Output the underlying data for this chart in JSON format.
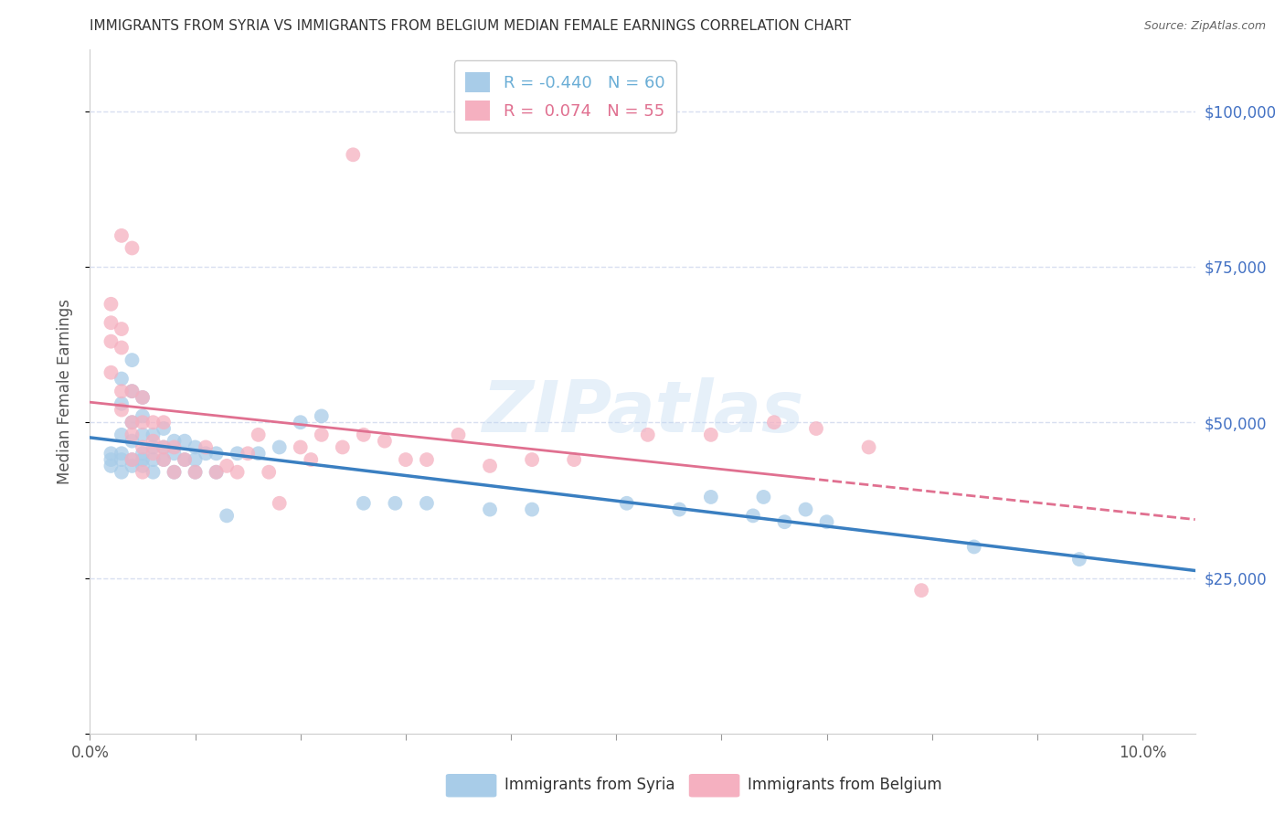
{
  "title": "IMMIGRANTS FROM SYRIA VS IMMIGRANTS FROM BELGIUM MEDIAN FEMALE EARNINGS CORRELATION CHART",
  "source": "Source: ZipAtlas.com",
  "ylabel": "Median Female Earnings",
  "watermark": "ZIPatlas",
  "xlim": [
    0.0,
    0.105
  ],
  "ylim": [
    0,
    110000
  ],
  "yticks": [
    0,
    25000,
    50000,
    75000,
    100000
  ],
  "ytick_labels": [
    "",
    "$25,000",
    "$50,000",
    "$75,000",
    "$100,000"
  ],
  "xticks": [
    0.0,
    0.01,
    0.02,
    0.03,
    0.04,
    0.05,
    0.06,
    0.07,
    0.08,
    0.09,
    0.1
  ],
  "xtick_labels_show": [
    "0.0%",
    "",
    "",
    "",
    "",
    "",
    "",
    "",
    "",
    "",
    "10.0%"
  ],
  "legend_entries": [
    {
      "label": "R = -0.440   N = 60",
      "color": "#6baed6"
    },
    {
      "label": "R =  0.074   N = 55",
      "color": "#e07090"
    }
  ],
  "syria_color": "#a8cce8",
  "belgium_color": "#f5b0c0",
  "syria_line_color": "#3a7fc1",
  "belgium_line_color": "#e07090",
  "grid_color": "#d8dff0",
  "title_color": "#333333",
  "ytick_color": "#4472c4",
  "background_color": "#ffffff",
  "syria_x": [
    0.002,
    0.002,
    0.002,
    0.003,
    0.003,
    0.003,
    0.003,
    0.003,
    0.003,
    0.004,
    0.004,
    0.004,
    0.004,
    0.004,
    0.004,
    0.005,
    0.005,
    0.005,
    0.005,
    0.005,
    0.005,
    0.006,
    0.006,
    0.006,
    0.006,
    0.007,
    0.007,
    0.007,
    0.008,
    0.008,
    0.008,
    0.009,
    0.009,
    0.01,
    0.01,
    0.01,
    0.011,
    0.012,
    0.012,
    0.013,
    0.014,
    0.016,
    0.018,
    0.02,
    0.022,
    0.026,
    0.029,
    0.032,
    0.038,
    0.042,
    0.051,
    0.056,
    0.059,
    0.063,
    0.064,
    0.066,
    0.068,
    0.07,
    0.084,
    0.094
  ],
  "syria_y": [
    45000,
    44000,
    43000,
    57000,
    53000,
    48000,
    45000,
    44000,
    42000,
    60000,
    55000,
    50000,
    47000,
    44000,
    43000,
    54000,
    51000,
    48000,
    45000,
    44000,
    43000,
    48000,
    46000,
    44000,
    42000,
    49000,
    46000,
    44000,
    47000,
    45000,
    42000,
    47000,
    44000,
    46000,
    44000,
    42000,
    45000,
    45000,
    42000,
    35000,
    45000,
    45000,
    46000,
    50000,
    51000,
    37000,
    37000,
    37000,
    36000,
    36000,
    37000,
    36000,
    38000,
    35000,
    38000,
    34000,
    36000,
    34000,
    30000,
    28000
  ],
  "belgium_x": [
    0.002,
    0.002,
    0.002,
    0.002,
    0.003,
    0.003,
    0.003,
    0.003,
    0.003,
    0.004,
    0.004,
    0.004,
    0.004,
    0.004,
    0.005,
    0.005,
    0.005,
    0.005,
    0.006,
    0.006,
    0.006,
    0.007,
    0.007,
    0.007,
    0.008,
    0.008,
    0.009,
    0.01,
    0.011,
    0.012,
    0.013,
    0.014,
    0.015,
    0.016,
    0.017,
    0.018,
    0.02,
    0.021,
    0.022,
    0.024,
    0.026,
    0.028,
    0.03,
    0.032,
    0.035,
    0.038,
    0.042,
    0.046,
    0.053,
    0.059,
    0.065,
    0.069,
    0.074,
    0.079,
    0.025
  ],
  "belgium_y": [
    69000,
    66000,
    63000,
    58000,
    80000,
    65000,
    62000,
    55000,
    52000,
    78000,
    55000,
    50000,
    48000,
    44000,
    54000,
    50000,
    46000,
    42000,
    50000,
    47000,
    45000,
    50000,
    46000,
    44000,
    46000,
    42000,
    44000,
    42000,
    46000,
    42000,
    43000,
    42000,
    45000,
    48000,
    42000,
    37000,
    46000,
    44000,
    48000,
    46000,
    48000,
    47000,
    44000,
    44000,
    48000,
    43000,
    44000,
    44000,
    48000,
    48000,
    50000,
    49000,
    46000,
    23000,
    93000
  ]
}
